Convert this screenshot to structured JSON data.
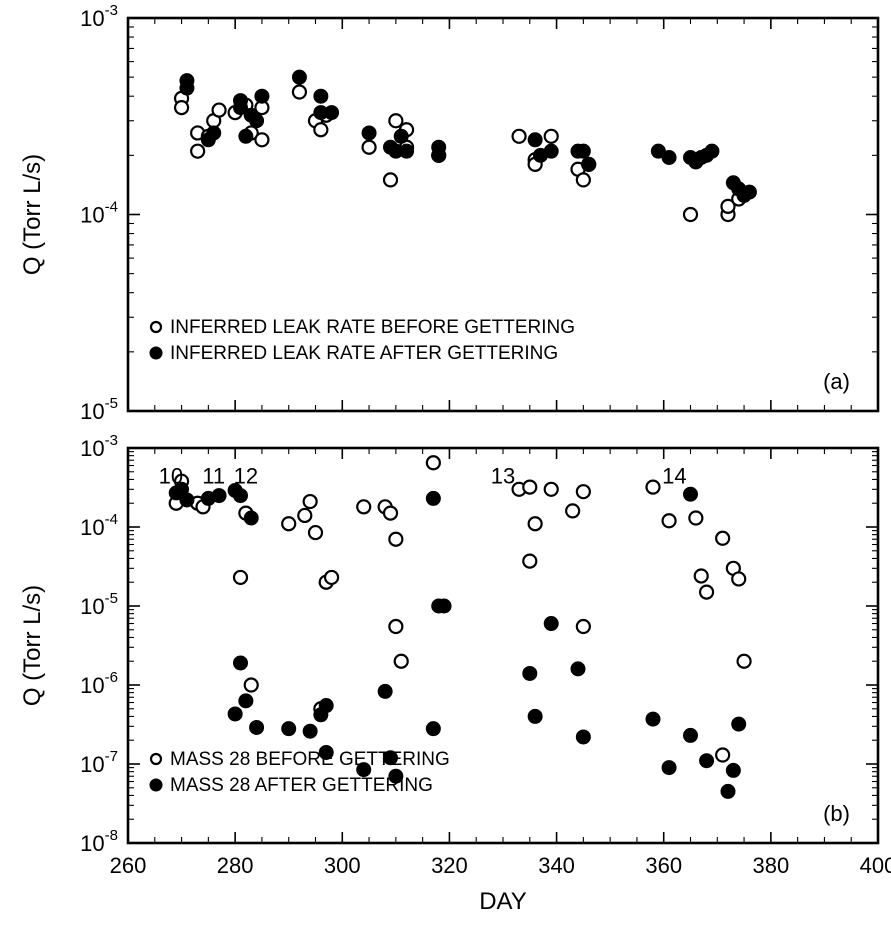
{
  "chart_data": [
    {
      "type": "scatter",
      "panel_label": "(a)",
      "xlim": [
        260,
        400
      ],
      "ylim": [
        1e-05,
        0.001
      ],
      "yscale": "log",
      "ylabel": "Q (Torr L/s)",
      "xlabel": "",
      "y_tick_labels": [
        {
          "value": 0.001,
          "base": "10",
          "exp": "-3"
        },
        {
          "value": 0.0001,
          "base": "10",
          "exp": "-4"
        },
        {
          "value": 1e-05,
          "base": "10",
          "exp": "-5"
        }
      ],
      "legend": "bottom-left",
      "series": [
        {
          "name": "INFERRED LEAK RATE BEFORE GETTERING",
          "marker": "open",
          "points": [
            [
              270,
              0.00039
            ],
            [
              270,
              0.00035
            ],
            [
              273,
              0.00021
            ],
            [
              273,
              0.00026
            ],
            [
              275,
              0.00025
            ],
            [
              276,
              0.0003
            ],
            [
              277,
              0.00034
            ],
            [
              280,
              0.00033
            ],
            [
              282,
              0.00036
            ],
            [
              283,
              0.00026
            ],
            [
              285,
              0.00024
            ],
            [
              285,
              0.00035
            ],
            [
              292,
              0.00042
            ],
            [
              295,
              0.0003
            ],
            [
              296,
              0.00027
            ],
            [
              297,
              0.00032
            ],
            [
              305,
              0.00022
            ],
            [
              309,
              0.00015
            ],
            [
              310,
              0.0003
            ],
            [
              312,
              0.00027
            ],
            [
              312,
              0.00022
            ],
            [
              318,
              0.0002
            ],
            [
              333,
              0.00025
            ],
            [
              336,
              0.00019
            ],
            [
              336,
              0.00018
            ],
            [
              339,
              0.00025
            ],
            [
              344,
              0.00017
            ],
            [
              345,
              0.00015
            ],
            [
              346,
              0.00018
            ],
            [
              365,
              0.0001
            ],
            [
              372,
              0.0001
            ],
            [
              372,
              0.00011
            ],
            [
              374,
              0.00012
            ]
          ]
        },
        {
          "name": "INFERRED LEAK RATE AFTER GETTERING",
          "marker": "filled",
          "points": [
            [
              271,
              0.00048
            ],
            [
              271,
              0.00044
            ],
            [
              275,
              0.00024
            ],
            [
              276,
              0.00026
            ],
            [
              281,
              0.00038
            ],
            [
              281,
              0.00035
            ],
            [
              282,
              0.00025
            ],
            [
              283,
              0.00032
            ],
            [
              284,
              0.0003
            ],
            [
              285,
              0.0004
            ],
            [
              292,
              0.0005
            ],
            [
              296,
              0.0004
            ],
            [
              296,
              0.00033
            ],
            [
              298,
              0.00033
            ],
            [
              305,
              0.00026
            ],
            [
              309,
              0.00022
            ],
            [
              310,
              0.00021
            ],
            [
              311,
              0.00025
            ],
            [
              312,
              0.00021
            ],
            [
              318,
              0.00022
            ],
            [
              318,
              0.0002
            ],
            [
              336,
              0.00024
            ],
            [
              337,
              0.0002
            ],
            [
              339,
              0.00021
            ],
            [
              344,
              0.00021
            ],
            [
              345,
              0.00021
            ],
            [
              346,
              0.00018
            ],
            [
              359,
              0.00021
            ],
            [
              361,
              0.000195
            ],
            [
              365,
              0.000195
            ],
            [
              366,
              0.000185
            ],
            [
              367,
              0.000195
            ],
            [
              368,
              0.0002
            ],
            [
              369,
              0.00021
            ],
            [
              373,
              0.000145
            ],
            [
              374,
              0.000135
            ],
            [
              375,
              0.000125
            ],
            [
              376,
              0.00013
            ]
          ]
        }
      ]
    },
    {
      "type": "scatter",
      "panel_label": "(b)",
      "xlim": [
        260,
        400
      ],
      "ylim": [
        1e-08,
        0.001
      ],
      "yscale": "log",
      "ylabel": "Q (Torr L/s)",
      "xlabel": "DAY",
      "x_ticks": [
        260,
        280,
        300,
        320,
        340,
        360,
        380,
        400
      ],
      "y_tick_labels": [
        {
          "value": 0.001,
          "base": "10",
          "exp": "-3"
        },
        {
          "value": 0.0001,
          "base": "10",
          "exp": "-4"
        },
        {
          "value": 1e-05,
          "base": "10",
          "exp": "-5"
        },
        {
          "value": 1e-06,
          "base": "10",
          "exp": "-6"
        },
        {
          "value": 1e-07,
          "base": "10",
          "exp": "-7"
        },
        {
          "value": 1e-08,
          "base": "10",
          "exp": "-8"
        }
      ],
      "legend": "bottom-left",
      "annotations": [
        {
          "text": "10",
          "x": 268,
          "y": 0.00045
        },
        {
          "text": "11",
          "x": 276,
          "y": 0.00045
        },
        {
          "text": "12",
          "x": 282,
          "y": 0.00045
        },
        {
          "text": "13",
          "x": 330,
          "y": 0.00045
        },
        {
          "text": "14",
          "x": 362,
          "y": 0.00045
        }
      ],
      "series": [
        {
          "name": "MASS 28 BEFORE GETTERING",
          "marker": "open",
          "points": [
            [
              269,
              0.0002
            ],
            [
              270,
              0.00038
            ],
            [
              273,
              0.0002
            ],
            [
              274,
              0.00018
            ],
            [
              281,
              2.3e-05
            ],
            [
              282,
              0.00015
            ],
            [
              283,
              1e-06
            ],
            [
              290,
              0.00011
            ],
            [
              293,
              0.00014
            ],
            [
              294,
              0.00021
            ],
            [
              295,
              8.5e-05
            ],
            [
              296,
              5e-07
            ],
            [
              297,
              2e-05
            ],
            [
              298,
              2.3e-05
            ],
            [
              304,
              0.00018
            ],
            [
              308,
              0.00018
            ],
            [
              309,
              0.00015
            ],
            [
              310,
              7e-05
            ],
            [
              310,
              5.5e-06
            ],
            [
              311,
              2e-06
            ],
            [
              317,
              0.00065
            ],
            [
              333,
              0.0003
            ],
            [
              335,
              0.00032
            ],
            [
              335,
              3.7e-05
            ],
            [
              336,
              0.00011
            ],
            [
              339,
              0.0003
            ],
            [
              343,
              0.00016
            ],
            [
              345,
              0.00028
            ],
            [
              345,
              5.5e-06
            ],
            [
              358,
              0.00032
            ],
            [
              361,
              0.00012
            ],
            [
              366,
              0.00013
            ],
            [
              367,
              2.4e-05
            ],
            [
              368,
              1.5e-05
            ],
            [
              371,
              7.2e-05
            ],
            [
              371,
              1.3e-07
            ],
            [
              373,
              3e-05
            ],
            [
              374,
              2.2e-05
            ],
            [
              375,
              2e-06
            ]
          ]
        },
        {
          "name": "MASS 28 AFTER GETTERING",
          "marker": "filled",
          "points": [
            [
              269,
              0.00027
            ],
            [
              270,
              0.0003
            ],
            [
              271,
              0.00022
            ],
            [
              275,
              0.00023
            ],
            [
              277,
              0.00025
            ],
            [
              280,
              0.00029
            ],
            [
              281,
              0.00025
            ],
            [
              280,
              4.3e-07
            ],
            [
              281,
              1.9e-06
            ],
            [
              282,
              6.3e-07
            ],
            [
              283,
              0.00013
            ],
            [
              284,
              2.9e-07
            ],
            [
              290,
              2.8e-07
            ],
            [
              294,
              2.6e-07
            ],
            [
              296,
              4.2e-07
            ],
            [
              297,
              1.4e-07
            ],
            [
              297,
              5.5e-07
            ],
            [
              304,
              8.5e-08
            ],
            [
              308,
              8.3e-07
            ],
            [
              309,
              1.2e-07
            ],
            [
              310,
              7e-08
            ],
            [
              317,
              0.00023
            ],
            [
              317,
              2.8e-07
            ],
            [
              318,
              1e-05
            ],
            [
              319,
              1e-05
            ],
            [
              335,
              1.4e-06
            ],
            [
              336,
              4e-07
            ],
            [
              339,
              6e-06
            ],
            [
              344,
              1.6e-06
            ],
            [
              345,
              2.2e-07
            ],
            [
              358,
              3.7e-07
            ],
            [
              361,
              9e-08
            ],
            [
              365,
              0.00026
            ],
            [
              365,
              2.3e-07
            ],
            [
              368,
              1.1e-07
            ],
            [
              372,
              4.5e-08
            ],
            [
              373,
              8.3e-08
            ],
            [
              374,
              3.2e-07
            ]
          ]
        }
      ]
    }
  ]
}
